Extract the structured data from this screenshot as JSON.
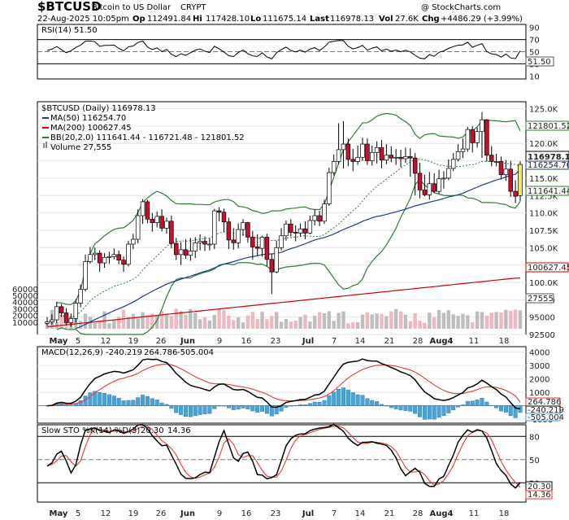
{
  "header": {
    "symbol": "$BTCUSD",
    "name": "Bitcoin to US Dollar",
    "exchange": "CRYPT",
    "watermark": "@ StockCharts.com",
    "date": "22-Aug-2025 10:05pm",
    "open_label": "Op",
    "open": "112491.84",
    "high_label": "Hi",
    "high": "117428.10",
    "low_label": "Lo",
    "low": "111675.14",
    "last_label": "Last",
    "last": "116978.13",
    "vol_label": "Vol",
    "vol": "27.6K",
    "chg_label": "Chg",
    "chg": "+4486.29 (+3.99%)"
  },
  "rsi_panel": {
    "legend": "RSI(14) 51.50",
    "ticks": [
      "90",
      "70",
      "50",
      "30",
      "10"
    ],
    "current_label": "51.50"
  },
  "price_panel": {
    "legend": {
      "symbol": "$BTCUSD (Daily) 116978.13",
      "ma50": "MA(50) 116254.70",
      "ma200": "MA(200) 100627.45",
      "bb": "BB(20,2.0) 111641.44 - 116721.48 - 121801.52",
      "volume": "Volume 27,555"
    },
    "price_ticks": [
      "125.0K",
      "122.5K",
      "120.0K",
      "117.5K",
      "115.0K",
      "112.5K",
      "110.0K",
      "107.5K",
      "105.0K",
      "102.5K",
      "100.0K",
      "97500",
      "95000",
      "92500"
    ],
    "volume_ticks": [
      "60000",
      "50000",
      "40000",
      "30000",
      "20000",
      "10000"
    ],
    "badges": {
      "bb_upper": "121801.52",
      "last": "116978.13",
      "ma50": "116254.70",
      "bb_lower": "111641.44",
      "ma200": "100627.45",
      "volume": "27555"
    }
  },
  "macd_panel": {
    "legend_name": "MACD(12,26,9)",
    "legend_macd": "-240.219",
    "legend_signal": "264.786",
    "legend_hist": "-505.004",
    "ticks": [
      "4000",
      "3000",
      "2000",
      "1000",
      "0",
      "-1000"
    ],
    "badges": {
      "signal": "264.786",
      "macd": "-240.219",
      "hist": "-505.004"
    }
  },
  "sto_panel": {
    "legend_name": "Slow STO %K(14) %D(3)",
    "legend_k": "20.30",
    "legend_d": "14.36",
    "ticks": [
      "80",
      "50",
      "20"
    ],
    "badges": {
      "k": "20.30",
      "d": "14.36"
    }
  },
  "x_axis": {
    "labels": [
      "May",
      "5",
      "12",
      "19",
      "26",
      "Jun",
      "9",
      "16",
      "23",
      "Jul",
      "7",
      "14",
      "21",
      "28",
      "Aug4",
      "11",
      "18"
    ]
  },
  "colors": {
    "up": "#ffffff",
    "down": "#c8102e",
    "candle_border": "#000000",
    "ma50": "#1f3a8a",
    "ma200": "#cc0000",
    "bb": "#2e7d32",
    "bb_mid": "#2e7d32",
    "vol_up": "#bdbdbd",
    "vol_down": "#f0b7bf",
    "macd": "#000000",
    "signal": "#e53935",
    "hist": "#4aa3d8",
    "sto_k": "#000000",
    "sto_d": "#e53935",
    "rsi": "#000000",
    "rsi_fill": "#4f7f4f"
  },
  "chart_data": {
    "type": "candlestick",
    "title": "$BTCUSD Bitcoin to US Dollar CRYPT",
    "x_axis_dates": [
      "2025-04-29",
      "2025-08-22"
    ],
    "ylim": [
      92500,
      126000
    ],
    "close": [
      94300,
      94600,
      96500,
      95600,
      94200,
      94800,
      97000,
      99000,
      103000,
      104000,
      104200,
      102800,
      103600,
      103700,
      104000,
      103200,
      102600,
      105500,
      106200,
      109600,
      111600,
      109100,
      108600,
      109500,
      107800,
      108800,
      105600,
      104000,
      104700,
      103900,
      104500,
      105700,
      105900,
      105500,
      105500,
      110300,
      110100,
      108700,
      106100,
      105700,
      107600,
      108600,
      106500,
      105100,
      104900,
      106500,
      103300,
      101500,
      105000,
      106700,
      108400,
      107200,
      107100,
      107700,
      107100,
      108900,
      109600,
      108800,
      111300,
      115800,
      117400,
      119100,
      119900,
      117700,
      117400,
      118000,
      119900,
      117500,
      118700,
      119400,
      117600,
      118300,
      117900,
      118000,
      117800,
      118100,
      117900,
      115700,
      113300,
      112600,
      114200,
      113100,
      114900,
      115000,
      116400,
      117700,
      118800,
      119200,
      122000,
      120100,
      121700,
      123400,
      118300,
      117400,
      117400,
      115500,
      116300,
      113100,
      112400,
      116978
    ],
    "open": [
      94100,
      94300,
      94600,
      96500,
      95600,
      94200,
      94800,
      97000,
      99000,
      103000,
      104000,
      104200,
      102800,
      103600,
      103700,
      104000,
      103200,
      102600,
      105500,
      106200,
      109600,
      111600,
      109100,
      108600,
      109500,
      107800,
      108800,
      105600,
      104000,
      104700,
      103900,
      104500,
      105700,
      105900,
      105500,
      105500,
      110300,
      110100,
      108700,
      106100,
      105700,
      107600,
      108600,
      106500,
      105100,
      104900,
      106500,
      103300,
      101500,
      105000,
      106700,
      108400,
      107200,
      107100,
      107700,
      107100,
      108900,
      109600,
      108800,
      111300,
      115800,
      117400,
      119100,
      119900,
      117700,
      117400,
      118000,
      119900,
      117500,
      118700,
      119400,
      117600,
      118300,
      117900,
      118000,
      117800,
      118100,
      117900,
      115700,
      113300,
      112600,
      114200,
      113100,
      114900,
      115000,
      116400,
      117700,
      118800,
      119200,
      122000,
      120100,
      121700,
      123400,
      118300,
      117400,
      117400,
      115500,
      116300,
      113100,
      112492
    ],
    "high": [
      95000,
      95400,
      97200,
      96900,
      96300,
      95500,
      97600,
      99700,
      104000,
      105100,
      105000,
      104600,
      104200,
      104400,
      104900,
      104600,
      103700,
      106000,
      107000,
      110500,
      112000,
      111900,
      110000,
      110200,
      110500,
      109300,
      109600,
      106400,
      105800,
      106200,
      106400,
      106500,
      106900,
      106600,
      106300,
      110600,
      110800,
      110600,
      109300,
      107800,
      108500,
      109100,
      108700,
      107400,
      106900,
      106700,
      107000,
      104100,
      106000,
      107800,
      108900,
      109100,
      108200,
      108500,
      108800,
      109600,
      110500,
      110300,
      111900,
      116500,
      118400,
      122900,
      123200,
      120700,
      119200,
      119700,
      120800,
      120700,
      119700,
      120300,
      120500,
      119900,
      119600,
      119200,
      119100,
      119400,
      119300,
      118600,
      117200,
      115500,
      115900,
      115700,
      116200,
      116000,
      117700,
      118600,
      119900,
      120700,
      122400,
      122500,
      122300,
      124500,
      123500,
      119600,
      118500,
      118100,
      117600,
      117500,
      114700,
      117428
    ],
    "low": [
      93800,
      93900,
      94100,
      95000,
      93800,
      93600,
      94200,
      96400,
      98700,
      102700,
      103200,
      101500,
      102100,
      102700,
      103300,
      102600,
      101500,
      102300,
      104800,
      105600,
      108400,
      108500,
      107300,
      107900,
      107300,
      107000,
      104900,
      103200,
      102500,
      103400,
      103100,
      103500,
      104600,
      104500,
      104600,
      104800,
      108800,
      107200,
      104800,
      104700,
      104900,
      106700,
      105700,
      103300,
      103800,
      103700,
      102300,
      98300,
      101300,
      104600,
      106000,
      106600,
      105900,
      106600,
      106200,
      106900,
      108200,
      108100,
      108400,
      111000,
      115400,
      117000,
      116400,
      116700,
      116000,
      116900,
      117500,
      116900,
      116800,
      117100,
      116400,
      117000,
      117300,
      116900,
      116600,
      117200,
      115200,
      112500,
      112100,
      112400,
      111900,
      112900,
      112700,
      113500,
      114700,
      116000,
      117400,
      117900,
      118800,
      118700,
      119400,
      117900,
      117400,
      116700,
      116700,
      114800,
      114600,
      112300,
      111400,
      111675
    ],
    "ma50_last": 116254.7,
    "ma200_last": 100627.45,
    "bb": {
      "upper": 121801.52,
      "middle": 116721.48,
      "lower": 111641.44
    },
    "rsi_last": 51.5,
    "macd_last": -240.219,
    "signal_last": 264.786,
    "hist_last": -505.004,
    "sto_k_last": 20.3,
    "sto_d_last": 14.36,
    "volume_last": 27555
  }
}
